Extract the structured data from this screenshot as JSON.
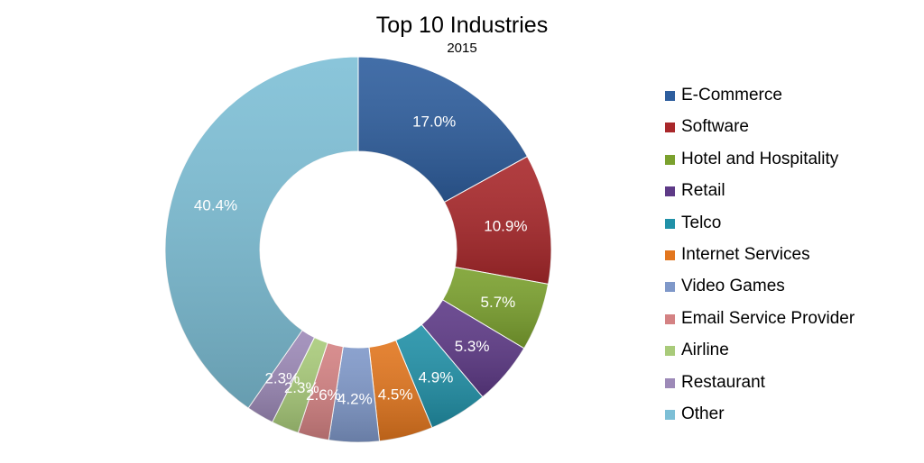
{
  "chart_data": {
    "type": "pie",
    "title": "Top 10 Industries",
    "subtitle": "2015",
    "legend_position": "right",
    "slices": [
      {
        "label": "E-Commerce",
        "value": 17.0,
        "value_label": "17.0%",
        "color": "#2E5E9E"
      },
      {
        "label": "Software",
        "value": 10.9,
        "value_label": "10.9%",
        "color": "#A9282B"
      },
      {
        "label": "Hotel and Hospitality",
        "value": 5.7,
        "value_label": "5.7%",
        "color": "#7BA12E"
      },
      {
        "label": "Retail",
        "value": 5.3,
        "value_label": "5.3%",
        "color": "#5E3A87"
      },
      {
        "label": "Telco",
        "value": 4.9,
        "value_label": "4.9%",
        "color": "#2191A8"
      },
      {
        "label": "Internet Services",
        "value": 4.5,
        "value_label": "4.5%",
        "color": "#E2761E"
      },
      {
        "label": "Video Games",
        "value": 4.2,
        "value_label": "4.2%",
        "color": "#7F98C9"
      },
      {
        "label": "Email Service Provider",
        "value": 2.6,
        "value_label": "2.6%",
        "color": "#D48283"
      },
      {
        "label": "Airline",
        "value": 2.3,
        "value_label": "2.3%",
        "color": "#A9CB7A"
      },
      {
        "label": "Restaurant",
        "value": 2.3,
        "value_label": "2.3%",
        "color": "#9D8AB8"
      },
      {
        "label": "Other",
        "value": 40.4,
        "value_label": "40.4%",
        "color": "#7DBFD6"
      }
    ]
  }
}
